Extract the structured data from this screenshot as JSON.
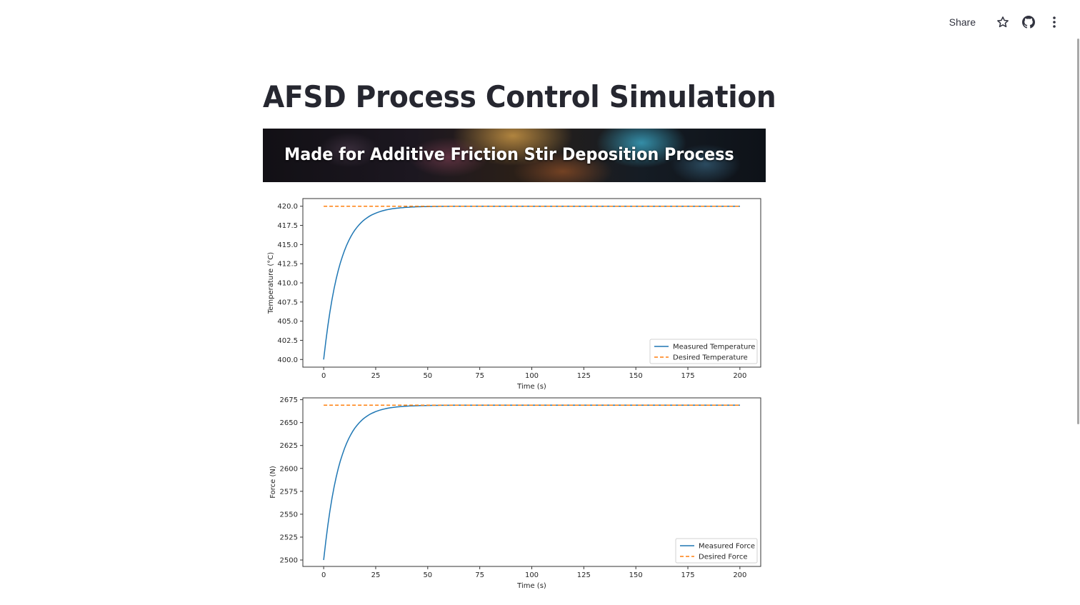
{
  "header": {
    "share_label": "Share",
    "icons": [
      "star-icon",
      "github-icon",
      "more-vertical-icon"
    ]
  },
  "page": {
    "title": "AFSD Process Control Simulation",
    "banner_text": "Made for Additive Friction Stir Deposition Process"
  },
  "colors": {
    "measured": "#1f77b4",
    "desired": "#ff7f0e",
    "title": "#262730"
  },
  "chart_data": [
    {
      "type": "line",
      "title": "",
      "xlabel": "Time (s)",
      "ylabel": "Temperature (°C)",
      "xlim": [
        -10,
        210
      ],
      "ylim": [
        399,
        421
      ],
      "xticks": [
        0,
        25,
        50,
        75,
        100,
        125,
        150,
        175,
        200
      ],
      "yticks": [
        "400.0",
        "402.5",
        "405.0",
        "407.5",
        "410.0",
        "412.5",
        "415.0",
        "417.5",
        "420.0"
      ],
      "legend_position": "lower right",
      "grid": false,
      "x": [
        0,
        5,
        10,
        15,
        20,
        25,
        30,
        40,
        50,
        60,
        75,
        100,
        125,
        150,
        175,
        200
      ],
      "series": [
        {
          "name": "Measured Temperature",
          "style": "solid",
          "values": [
            400.0,
            409.3,
            414.3,
            416.9,
            418.4,
            419.1,
            419.5,
            419.87,
            419.96,
            419.99,
            420.0,
            420.0,
            420.0,
            420.0,
            420.0,
            420.0
          ]
        },
        {
          "name": "Desired Temperature",
          "style": "dashed",
          "values": [
            420,
            420,
            420,
            420,
            420,
            420,
            420,
            420,
            420,
            420,
            420,
            420,
            420,
            420,
            420,
            420
          ]
        }
      ]
    },
    {
      "type": "line",
      "title": "",
      "xlabel": "Time (s)",
      "ylabel": "Force (N)",
      "xlim": [
        -10,
        210
      ],
      "ylim": [
        2493,
        2677
      ],
      "xticks": [
        0,
        25,
        50,
        75,
        100,
        125,
        150,
        175,
        200
      ],
      "yticks": [
        "2500",
        "2525",
        "2550",
        "2575",
        "2600",
        "2625",
        "2650",
        "2675"
      ],
      "legend_position": "lower right",
      "grid": false,
      "x": [
        0,
        5,
        10,
        15,
        20,
        25,
        30,
        40,
        50,
        60,
        75,
        100,
        125,
        150,
        175,
        200
      ],
      "series": [
        {
          "name": "Measured Force",
          "style": "solid",
          "values": [
            2500,
            2578,
            2620,
            2642,
            2655,
            2662,
            2665,
            2668,
            2668.8,
            2669,
            2669,
            2669,
            2669,
            2669,
            2669,
            2669
          ]
        },
        {
          "name": "Desired Force",
          "style": "dashed",
          "values": [
            2669,
            2669,
            2669,
            2669,
            2669,
            2669,
            2669,
            2669,
            2669,
            2669,
            2669,
            2669,
            2669,
            2669,
            2669,
            2669
          ]
        }
      ]
    }
  ]
}
